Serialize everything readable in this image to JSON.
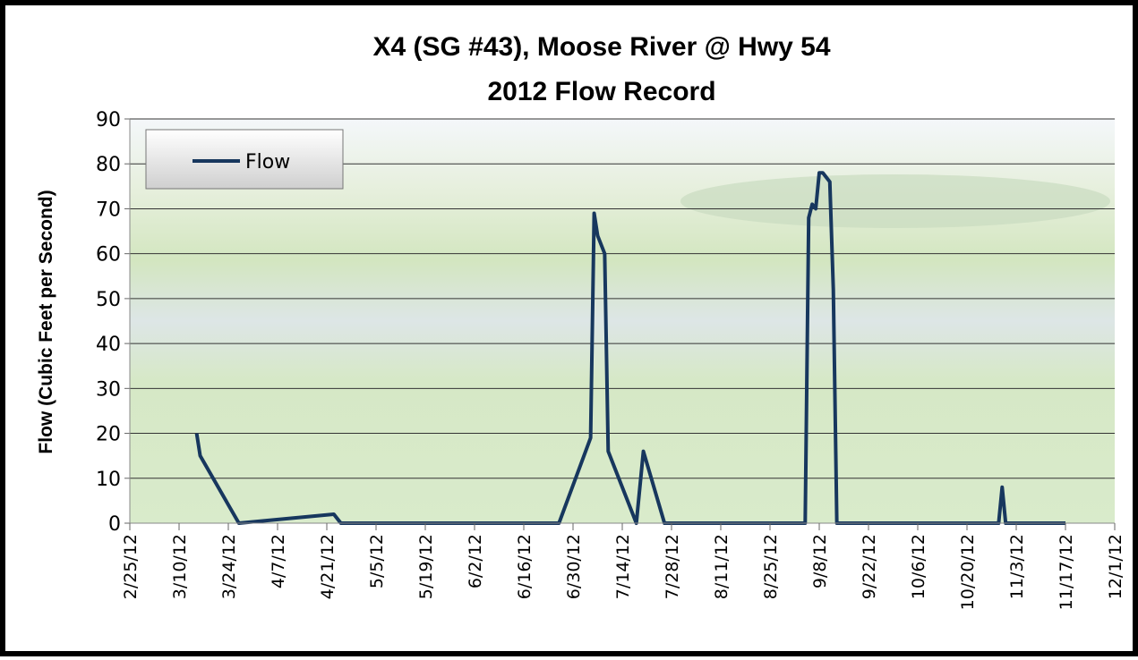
{
  "chart_data": {
    "type": "line",
    "title": "X4 (SG #43), Moose River @ Hwy 54",
    "subtitle": "2012 Flow Record",
    "y_label": "Flow (Cubic Feet per Second)",
    "legend": "top-left",
    "grid": true,
    "x": [
      "2012-03-15",
      "2012-03-16",
      "2012-03-27",
      "2012-04-23",
      "2012-04-25",
      "2012-06-26",
      "2012-07-05",
      "2012-07-06",
      "2012-07-07",
      "2012-07-09",
      "2012-07-10",
      "2012-07-13",
      "2012-07-18",
      "2012-07-20",
      "2012-07-26",
      "2012-09-04",
      "2012-09-05",
      "2012-09-06",
      "2012-09-07",
      "2012-09-08",
      "2012-09-09",
      "2012-09-10",
      "2012-09-11",
      "2012-09-12",
      "2012-09-13",
      "2012-10-29",
      "2012-10-30",
      "2012-10-31",
      "2012-11-17"
    ],
    "series": [
      {
        "name": "Flow",
        "color": "#17375e",
        "values": [
          20,
          15,
          0,
          2,
          0,
          0,
          19,
          69,
          64,
          60,
          16,
          10,
          0,
          16,
          0,
          0,
          68,
          71,
          70,
          78,
          78,
          77,
          76,
          52,
          0,
          0,
          8,
          0,
          0
        ]
      }
    ],
    "xlim": [
      "2012-02-25",
      "2012-12-01"
    ],
    "xticks": [
      {
        "value": "2012-02-25",
        "label": "2/25/12"
      },
      {
        "value": "2012-03-10",
        "label": "3/10/12"
      },
      {
        "value": "2012-03-24",
        "label": "3/24/12"
      },
      {
        "value": "2012-04-07",
        "label": "4/7/12"
      },
      {
        "value": "2012-04-21",
        "label": "4/21/12"
      },
      {
        "value": "2012-05-05",
        "label": "5/5/12"
      },
      {
        "value": "2012-05-19",
        "label": "5/19/12"
      },
      {
        "value": "2012-06-02",
        "label": "6/2/12"
      },
      {
        "value": "2012-06-16",
        "label": "6/16/12"
      },
      {
        "value": "2012-06-30",
        "label": "6/30/12"
      },
      {
        "value": "2012-07-14",
        "label": "7/14/12"
      },
      {
        "value": "2012-07-28",
        "label": "7/28/12"
      },
      {
        "value": "2012-08-11",
        "label": "8/11/12"
      },
      {
        "value": "2012-08-25",
        "label": "8/25/12"
      },
      {
        "value": "2012-09-08",
        "label": "9/8/12"
      },
      {
        "value": "2012-09-22",
        "label": "9/22/12"
      },
      {
        "value": "2012-10-06",
        "label": "10/6/12"
      },
      {
        "value": "2012-10-20",
        "label": "10/20/12"
      },
      {
        "value": "2012-11-03",
        "label": "11/3/12"
      },
      {
        "value": "2012-11-17",
        "label": "11/17/12"
      },
      {
        "value": "2012-12-01",
        "label": "12/1/12"
      }
    ],
    "ylim": [
      0,
      90
    ],
    "yticks": [
      0,
      10,
      20,
      30,
      40,
      50,
      60,
      70,
      80,
      90
    ]
  }
}
